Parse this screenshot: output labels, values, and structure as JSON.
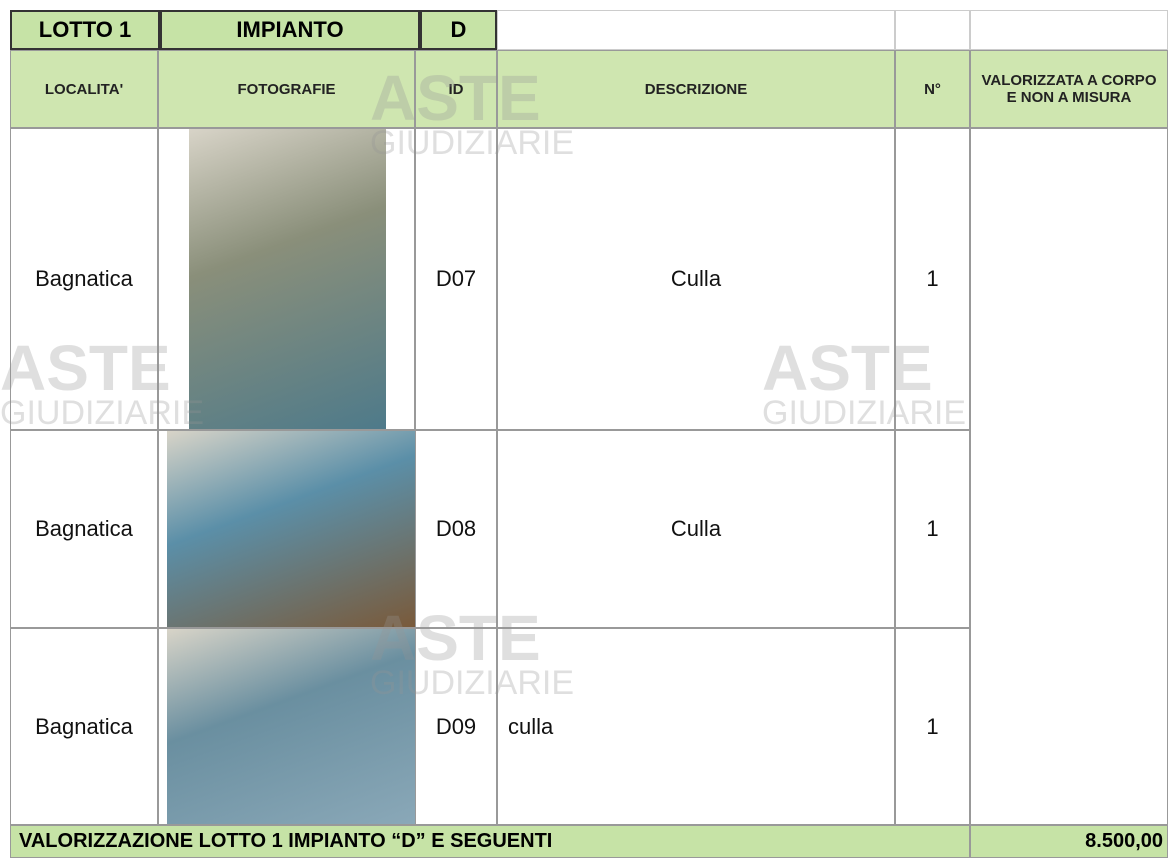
{
  "header": {
    "lotto": "LOTTO 1",
    "impianto": "IMPIANTO",
    "code": "D"
  },
  "columns": [
    "LOCALITA'",
    "FOTOGRAFIE",
    "ID",
    "DESCRIZIONE",
    "N°",
    "VALORIZZATA A CORPO E NON A MISURA"
  ],
  "rows": [
    [
      "Bagnatica",
      "D07",
      "Culla",
      "1"
    ],
    [
      "Bagnatica",
      "D08",
      "Culla",
      "1"
    ],
    [
      "Bagnatica",
      "D09",
      "culla",
      "1"
    ]
  ],
  "footer": {
    "label": "VALORIZZAZIONE LOTTO 1  IMPIANTO “D” E SEGUENTI",
    "value": "8.500,00"
  },
  "watermark": {
    "line1": "ASTE",
    "line2": "GIUDIZIARIE"
  }
}
